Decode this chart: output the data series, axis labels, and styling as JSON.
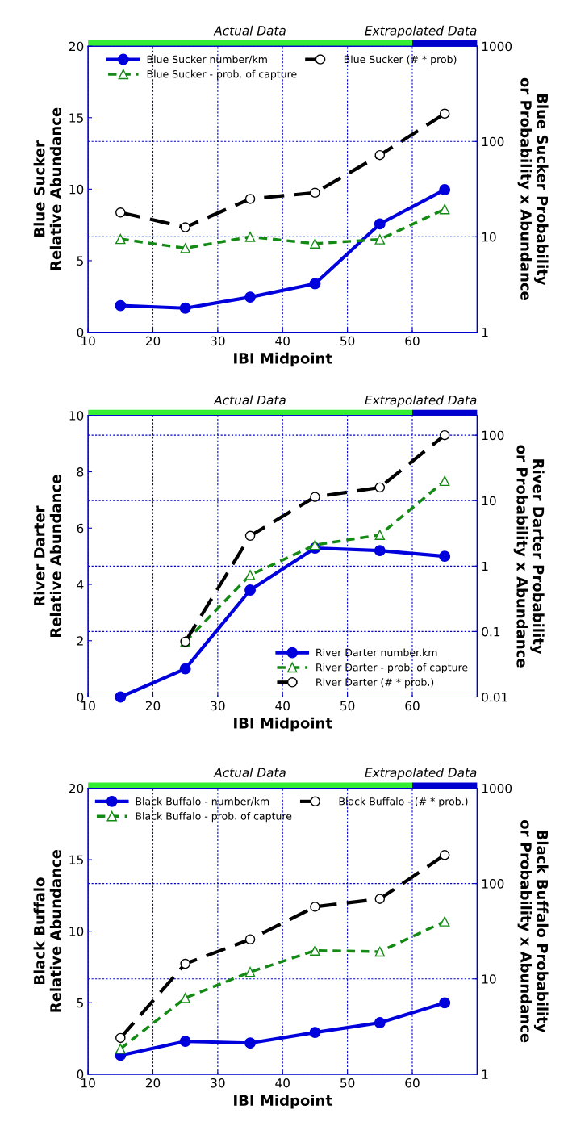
{
  "chart_data": [
    {
      "type": "line",
      "x": [
        15,
        25,
        35,
        45,
        55,
        65
      ],
      "xlabel": "IBI Midpoint",
      "ylabel": "Blue Sucker\nRelative Abundance",
      "y2label": "Blue Sucker Probability\nor Probability x Abundance",
      "xlim": [
        10,
        70
      ],
      "xticks": [
        10,
        20,
        30,
        40,
        50,
        60
      ],
      "ylim": [
        0,
        20
      ],
      "yticks": [
        0,
        5,
        10,
        15,
        20
      ],
      "y2lim": [
        1,
        1000
      ],
      "y2ticks": [
        1,
        10,
        100,
        1000
      ],
      "log": "y2",
      "grid": true,
      "legend": "top",
      "annotations": [
        "Actual Data",
        "Extrapolated Data"
      ],
      "series": [
        {
          "name": "Blue Sucker number/km",
          "color": "#0000dd",
          "values": [
            1.86,
            1.68,
            2.45,
            3.39,
            7.57,
            9.96
          ],
          "marker": "circle",
          "line_style": "solid"
        },
        {
          "name": "Blue Sucker - prob. of capture",
          "color": "#138a13",
          "axis": "y2",
          "values": [
            9.5,
            7.6,
            10,
            8.5,
            9.4,
            19.5
          ],
          "marker": "triangle",
          "line_style": "dotted"
        },
        {
          "name": "Blue Sucker (# * prob)",
          "color": "#000000",
          "axis": "y2",
          "values": [
            18,
            12.6,
            25,
            29,
            72,
            196
          ],
          "marker": "circle",
          "line_style": "dashed"
        }
      ]
    },
    {
      "type": "line",
      "x": [
        15,
        25,
        35,
        45,
        55,
        65
      ],
      "xlabel": "IBI Midpoint",
      "ylabel": "River Darter\nRelative Abundance",
      "y2label": "River Darter Probability\nor Probability x Abundance",
      "xlim": [
        10,
        70
      ],
      "xticks": [
        10,
        20,
        30,
        40,
        50,
        60
      ],
      "ylim": [
        0,
        10
      ],
      "yticks": [
        0,
        2,
        4,
        6,
        8,
        10
      ],
      "y2lim": [
        0.01,
        200
      ],
      "y2ticks": [
        0.01,
        0.1,
        1,
        10,
        100
      ],
      "log": "y2",
      "grid": true,
      "legend": "bottom right",
      "annotations": [
        "Actual Data",
        "Extrapolated Data"
      ],
      "series": [
        {
          "name": "River Darter number.km",
          "color": "#0000dd",
          "values": [
            0,
            1.0,
            3.8,
            5.29,
            5.2,
            5.0
          ],
          "marker": "circle",
          "line_style": "solid"
        },
        {
          "name": "River Darter - prob. of capture",
          "color": "#138a13",
          "axis": "y2",
          "values": [
            null,
            0.07,
            0.73,
            2.1,
            3.0,
            20
          ],
          "marker": "triangle",
          "line_style": "dotted"
        },
        {
          "name": "River Darter (# * prob.)",
          "color": "#000000",
          "axis": "y2",
          "values": [
            null,
            0.07,
            2.9,
            11.4,
            15.9,
            100
          ],
          "marker": "circle",
          "line_style": "dashed"
        }
      ]
    },
    {
      "type": "line",
      "x": [
        15,
        25,
        35,
        45,
        55,
        65
      ],
      "xlabel": "IBI Midpoint",
      "ylabel": "Black Buffalo\nRelative Abundance",
      "y2label": "Black Buffalo Probability\nor Probability x Abundance",
      "xlim": [
        10,
        70
      ],
      "xticks": [
        10,
        20,
        30,
        40,
        50,
        60
      ],
      "ylim": [
        0,
        20
      ],
      "yticks": [
        0,
        5,
        10,
        15,
        20
      ],
      "y2lim": [
        1,
        1000
      ],
      "y2ticks": [
        1,
        10,
        100,
        1000
      ],
      "log": "y2",
      "grid": true,
      "legend": "top",
      "annotations": [
        "Actual Data",
        "Extrapolated Data"
      ],
      "series": [
        {
          "name": "Black Buffalo - number/km",
          "color": "#0000dd",
          "values": [
            1.32,
            2.3,
            2.18,
            2.92,
            3.6,
            4.99
          ],
          "marker": "circle",
          "line_style": "solid"
        },
        {
          "name": "Black Buffalo - prob. of capture",
          "color": "#138a13",
          "axis": "y2",
          "values": [
            1.85,
            6.3,
            11.8,
            19.8,
            19.3,
            40
          ],
          "marker": "triangle",
          "line_style": "dotted"
        },
        {
          "name": "Black Buffalo - (# * prob.)",
          "color": "#000000",
          "axis": "y2",
          "values": [
            2.4,
            14.4,
            26,
            57,
            69,
            199
          ],
          "marker": "circle",
          "line_style": "dashed"
        }
      ]
    }
  ]
}
